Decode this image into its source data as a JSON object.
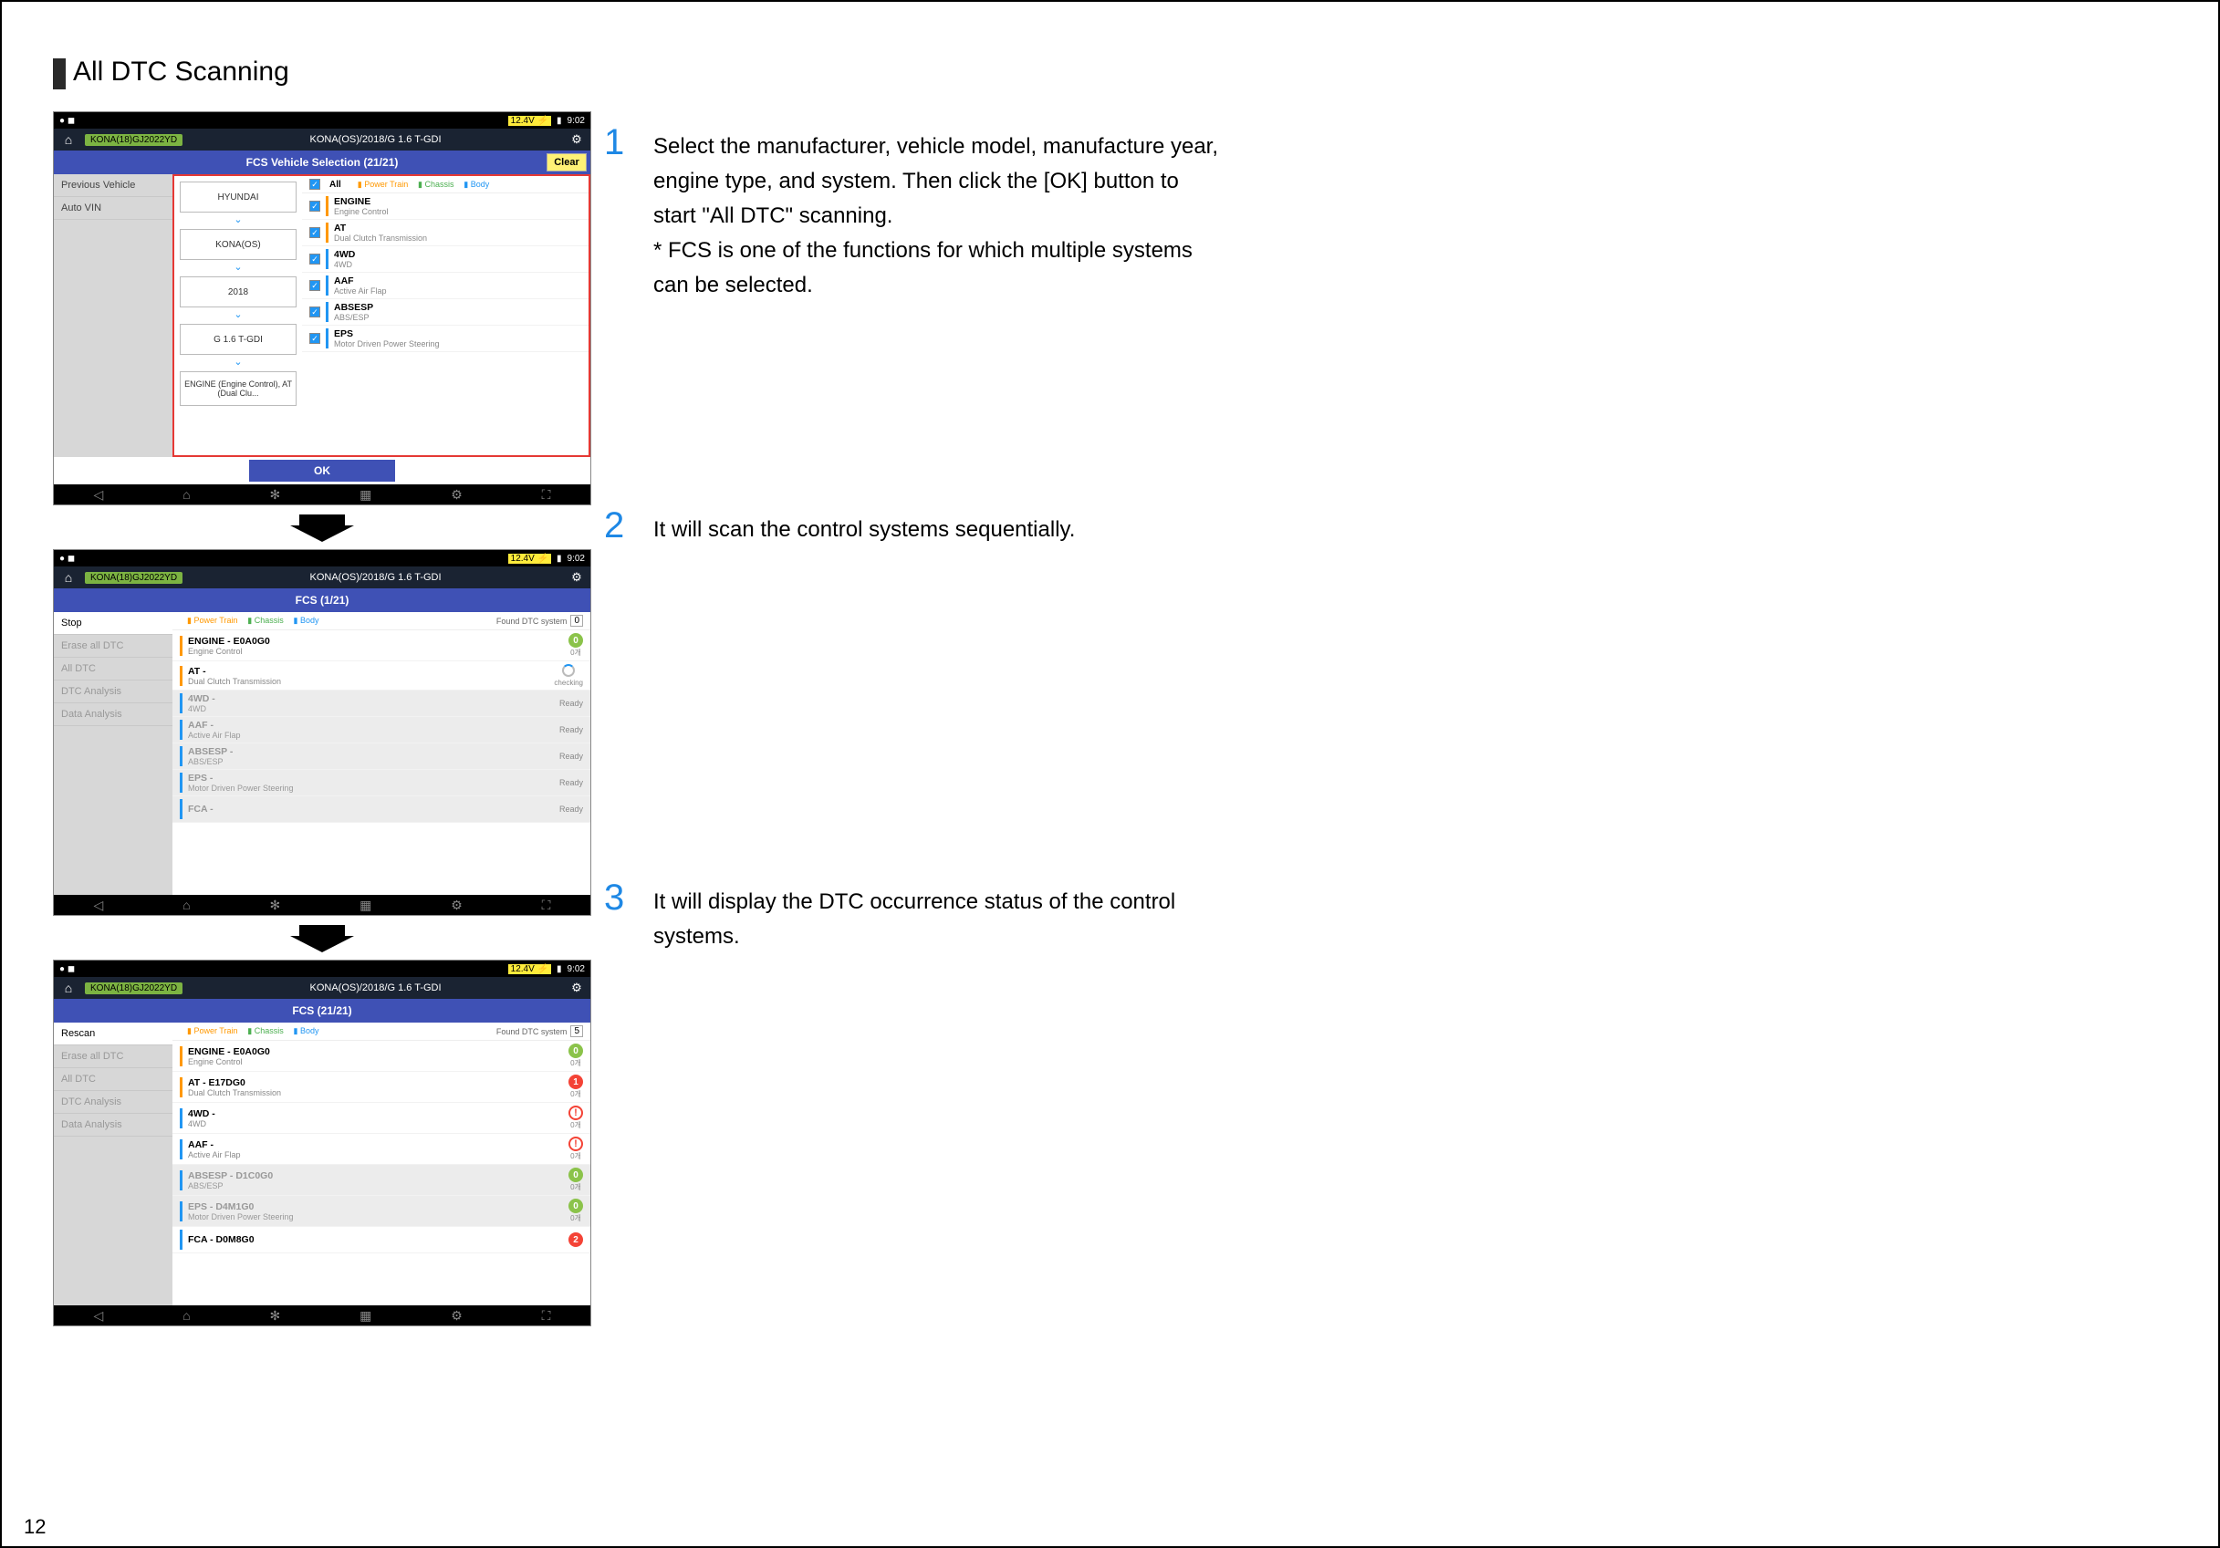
{
  "page_number": "12",
  "heading": "All DTC Scanning",
  "steps": [
    {
      "num": "1",
      "text": "Select the manufacturer, vehicle model, manufacture year, engine type, and system. Then click the [OK] button to start \"All DTC\" scanning.\n* FCS is one of the functions for which multiple systems can be selected."
    },
    {
      "num": "2",
      "text": "It will scan the control systems sequentially."
    },
    {
      "num": "3",
      "text": "It will display the DTC occurrence status of the control systems."
    }
  ],
  "statusbar": {
    "left": "● ◼",
    "voltage": "12.4V",
    "batt_icon": "▮",
    "time": "9:02"
  },
  "crumb": {
    "badge": "KONA(18)GJ2022YD",
    "path": "KONA(OS)/2018/G 1.6 T-GDI"
  },
  "legend": {
    "power": "Power Train",
    "chassis": "Chassis",
    "body": "Body"
  },
  "clear_label": "Clear",
  "ok_label": "OK",
  "shot1": {
    "titlebar": "FCS Vehicle Selection (21/21)",
    "sidebar": [
      "Previous Vehicle",
      "Auto VIN"
    ],
    "selects": [
      "HYUNDAI",
      "KONA(OS)",
      "2018",
      "G 1.6 T-GDI",
      "ENGINE (Engine Control), AT (Dual Clu..."
    ],
    "all_label": "All",
    "systems": [
      {
        "code": "ENGINE",
        "sub": "Engine Control",
        "barcolor": "or"
      },
      {
        "code": "AT",
        "sub": "Dual Clutch Transmission",
        "barcolor": "or"
      },
      {
        "code": "4WD",
        "sub": "4WD",
        "barcolor": "bl"
      },
      {
        "code": "AAF",
        "sub": "Active Air Flap",
        "barcolor": "bl"
      },
      {
        "code": "ABSESP",
        "sub": "ABS/ESP",
        "barcolor": "bl"
      },
      {
        "code": "EPS",
        "sub": "Motor Driven Power Steering",
        "barcolor": "bl"
      }
    ]
  },
  "shot2": {
    "titlebar": "FCS (1/21)",
    "sidebar": [
      "Stop",
      "Erase all DTC",
      "All DTC",
      "DTC Analysis",
      "Data Analysis"
    ],
    "found_label": "Found DTC system",
    "found_count": "0",
    "systems": [
      {
        "code": "ENGINE - E0A0G0",
        "sub": "Engine Control",
        "barcolor": "or",
        "status": "ok0",
        "dim": false
      },
      {
        "code": "AT -",
        "sub": "Dual Clutch Transmission",
        "barcolor": "or",
        "status": "spin",
        "dim": false
      },
      {
        "code": "4WD -",
        "sub": "4WD",
        "barcolor": "bl",
        "status": "ready",
        "dim": true
      },
      {
        "code": "AAF -",
        "sub": "Active Air Flap",
        "barcolor": "bl",
        "status": "ready",
        "dim": true
      },
      {
        "code": "ABSESP -",
        "sub": "ABS/ESP",
        "barcolor": "bl",
        "status": "ready",
        "dim": true
      },
      {
        "code": "EPS -",
        "sub": "Motor Driven Power Steering",
        "barcolor": "bl",
        "status": "ready",
        "dim": true
      },
      {
        "code": "FCA -",
        "sub": "",
        "barcolor": "bl",
        "status": "ready",
        "dim": true
      }
    ]
  },
  "shot3": {
    "titlebar": "FCS (21/21)",
    "sidebar": [
      "Rescan",
      "Erase all DTC",
      "All DTC",
      "DTC Analysis",
      "Data Analysis"
    ],
    "found_label": "Found DTC system",
    "found_count": "5",
    "systems": [
      {
        "code": "ENGINE - E0A0G0",
        "sub": "Engine Control",
        "barcolor": "or",
        "status": "ok0",
        "dim": false
      },
      {
        "code": "AT - E17DG0",
        "sub": "Dual Clutch Transmission",
        "barcolor": "or",
        "status": "red1",
        "dim": false
      },
      {
        "code": "4WD -",
        "sub": "4WD",
        "barcolor": "bl",
        "status": "warn",
        "dim": false
      },
      {
        "code": "AAF -",
        "sub": "Active Air Flap",
        "barcolor": "bl",
        "status": "warn",
        "dim": false
      },
      {
        "code": "ABSESP - D1C0G0",
        "sub": "ABS/ESP",
        "barcolor": "bl",
        "status": "ok0",
        "dim": true
      },
      {
        "code": "EPS - D4M1G0",
        "sub": "Motor Driven Power Steering",
        "barcolor": "bl",
        "status": "ok0",
        "dim": true
      },
      {
        "code": "FCA - D0M8G0",
        "sub": "",
        "barcolor": "bl",
        "status": "red2",
        "dim": false
      }
    ]
  },
  "status_labels": {
    "ready": "Ready",
    "checking": "checking"
  }
}
